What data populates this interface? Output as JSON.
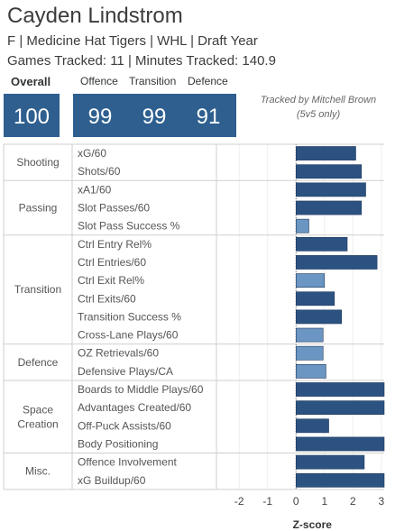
{
  "header": {
    "title": "Cayden Lindstrom",
    "subtitle": "F | Medicine Hat Tigers | WHL | Draft Year",
    "tracked": "Games Tracked: 11 | Minutes Tracked: 140.9"
  },
  "scores": {
    "overall_label": "Overall",
    "overall_value": "100",
    "offence_label": "Offence",
    "offence_value": "99",
    "transition_label": "Transition",
    "transition_value": "99",
    "defence_label": "Defence",
    "defence_value": "91"
  },
  "tracker_note": {
    "line1": "Tracked by Mitchell Brown",
    "line2": "(5v5 only)"
  },
  "colors": {
    "score_box": "#2e5f8f",
    "bar_dark": "#2c5282",
    "bar_light": "#6b95c2"
  },
  "chart_data": {
    "type": "bar",
    "orientation": "horizontal",
    "xlabel": "Z-score",
    "xlim": [
      -2.8,
      3.1
    ],
    "ticks": [
      "-2",
      "-1",
      "0",
      "1",
      "2",
      "3"
    ],
    "tick_values": [
      -2,
      -1,
      0,
      1,
      2,
      3
    ],
    "groups": [
      {
        "name": "Shooting",
        "metrics": [
          {
            "label": "xG/60",
            "value": 2.1,
            "shade": "dark"
          },
          {
            "label": "Shots/60",
            "value": 2.3,
            "shade": "dark"
          }
        ]
      },
      {
        "name": "Passing",
        "metrics": [
          {
            "label": "xA1/60",
            "value": 2.45,
            "shade": "dark"
          },
          {
            "label": "Slot Passes/60",
            "value": 2.3,
            "shade": "dark"
          },
          {
            "label": "Slot Pass Success %",
            "value": 0.45,
            "shade": "light"
          }
        ]
      },
      {
        "name": "Transition",
        "metrics": [
          {
            "label": "Ctrl Entry Rel%",
            "value": 1.8,
            "shade": "dark"
          },
          {
            "label": "Ctrl Entries/60",
            "value": 2.85,
            "shade": "dark"
          },
          {
            "label": "Ctrl Exit Rel%",
            "value": 1.0,
            "shade": "light"
          },
          {
            "label": "Ctrl Exits/60",
            "value": 1.35,
            "shade": "dark"
          },
          {
            "label": "Transition Success %",
            "value": 1.6,
            "shade": "dark"
          },
          {
            "label": "Cross-Lane Plays/60",
            "value": 0.95,
            "shade": "light"
          }
        ]
      },
      {
        "name": "Defence",
        "metrics": [
          {
            "label": "OZ Retrievals/60",
            "value": 0.95,
            "shade": "light"
          },
          {
            "label": "Defensive Plays/CA",
            "value": 1.05,
            "shade": "light"
          }
        ]
      },
      {
        "name": "Space Creation",
        "metrics": [
          {
            "label": "Boards to Middle Plays/60",
            "value": 3.1,
            "shade": "dark"
          },
          {
            "label": "Advantages Created/60",
            "value": 3.1,
            "shade": "dark"
          },
          {
            "label": "Off-Puck Assists/60",
            "value": 1.15,
            "shade": "dark"
          },
          {
            "label": "Body Positioning",
            "value": 3.1,
            "shade": "dark"
          }
        ]
      },
      {
        "name": "Misc.",
        "metrics": [
          {
            "label": "Offence Involvement",
            "value": 2.4,
            "shade": "dark"
          },
          {
            "label": "xG Buildup/60",
            "value": 3.1,
            "shade": "dark"
          }
        ]
      }
    ]
  }
}
